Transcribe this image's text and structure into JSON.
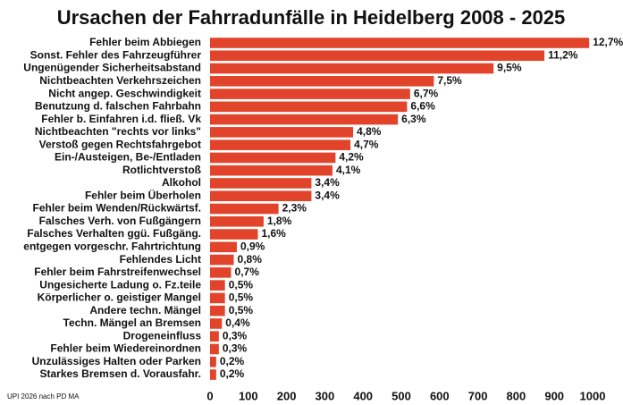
{
  "chart_data": {
    "type": "bar",
    "orientation": "horizontal",
    "title": "Ursachen der Fahrradunfälle in Heidelberg 2008 - 2025",
    "footnote": "UPI 2026 nach PD MA",
    "color": "#e2442b",
    "categories": [
      "Fehler beim Abbiegen",
      "Sonst. Fehler des Fahrzeugführer",
      "Ungenügender Sicherheitsabstand",
      "Nichtbeachten  Verkehrszeichen",
      "Nicht angep. Geschwindigkeit",
      "Benutzung d. falschen Fahrbahn",
      "Fehler b. Einfahren i.d. fließ. Vk",
      "Nichtbeachten \"rechts vor links\"",
      "Verstoß gegen Rechtsfahrgebot",
      "Ein-/Austeigen, Be-/Entladen",
      "Rotlichtverstoß",
      "Alkohol",
      "Fehler beim Überholen",
      "Fehler beim Wenden/Rückwärtsf.",
      "Falsches Verh. von Fußgängern",
      "Falsches Verhalten ggü. Fußgäng.",
      "entgegen vorgeschr. Fahrtrichtung",
      "Fehlendes Licht",
      "Fehler beim Fahrstreifenwechsel",
      "Ungesicherte Ladung o. Fz.teile",
      "Körperlicher o. geistiger Mangel",
      "Andere techn. Mängel",
      "Techn. Mängel an Bremsen",
      "Drogeneinfluss",
      "Fehler beim Wiedereinordnen",
      "Unzulässiges Halten oder Parken",
      "Starkes Bremsen d. Vorausfahr."
    ],
    "values": [
      991,
      874,
      741,
      585,
      523,
      515,
      491,
      374,
      367,
      328,
      320,
      265,
      265,
      179,
      140,
      125,
      70,
      62,
      55,
      39,
      39,
      39,
      31,
      23,
      23,
      16,
      16
    ],
    "share_labels": [
      "12,7%",
      "11,2%",
      "9,5%",
      "7,5%",
      "6,7%",
      "6,6%",
      "6,3%",
      "4,8%",
      "4,7%",
      "4,2%",
      "4,1%",
      "3,4%",
      "3,4%",
      "2,3%",
      "1,8%",
      "1,6%",
      "0,9%",
      "0,8%",
      "0,7%",
      "0,5%",
      "0,5%",
      "0,5%",
      "0,4%",
      "0,3%",
      "0,3%",
      "0,2%",
      "0,2%"
    ],
    "xlim": [
      0,
      1000
    ],
    "xticks": [
      0,
      100,
      200,
      300,
      400,
      500,
      600,
      700,
      800,
      900,
      1000
    ],
    "grid": false
  }
}
